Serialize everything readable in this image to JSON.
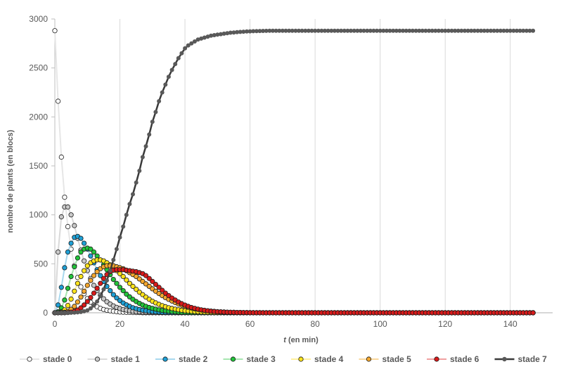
{
  "chart_data": {
    "type": "scatter",
    "title": "",
    "xlabel_italic": "t",
    "xlabel_rest": " (en min)",
    "ylabel": "nombre de plants (en blocs)",
    "xlim": [
      0,
      150
    ],
    "ylim": [
      0,
      3000
    ],
    "xticks": [
      0,
      20,
      40,
      60,
      80,
      100,
      120,
      140
    ],
    "yticks": [
      0,
      500,
      1000,
      1500,
      2000,
      2500,
      3000
    ],
    "grid": "vertical",
    "legend_position": "bottom",
    "x": "0..147 step 1",
    "series": [
      {
        "name": "stade 0",
        "fill": "#ffffff",
        "line": "#e6e6e6",
        "values": [
          2880,
          2160,
          1590,
          1180,
          880,
          650,
          480,
          360,
          265,
          195,
          145,
          108,
          80,
          60,
          45,
          34,
          26,
          20,
          15,
          11,
          8,
          6,
          5,
          4,
          3,
          2,
          2,
          1,
          1,
          1,
          0
        ]
      },
      {
        "name": "stade 1",
        "fill": "#c8c8c8",
        "line": "#d9d9d9",
        "values": [
          0,
          620,
          980,
          1080,
          1080,
          1000,
          890,
          760,
          640,
          530,
          430,
          350,
          280,
          225,
          180,
          143,
          113,
          89,
          70,
          55,
          43,
          34,
          27,
          21,
          16,
          13,
          10,
          8,
          6,
          5,
          4,
          3,
          2,
          2,
          1,
          1,
          0
        ]
      },
      {
        "name": "stade 2",
        "fill": "#1ea0d6",
        "line": "#a8d8ee",
        "values": [
          0,
          80,
          260,
          460,
          620,
          710,
          770,
          780,
          760,
          710,
          650,
          580,
          510,
          440,
          380,
          320,
          270,
          225,
          185,
          152,
          124,
          100,
          81,
          65,
          52,
          42,
          33,
          26,
          21,
          16,
          13,
          10,
          8,
          6,
          5,
          4,
          3,
          2,
          2,
          1,
          0
        ]
      },
      {
        "name": "stade 3",
        "fill": "#22c43a",
        "line": "#a6e6b0",
        "values": [
          0,
          10,
          50,
          130,
          250,
          370,
          470,
          560,
          620,
          650,
          660,
          650,
          620,
          580,
          540,
          490,
          440,
          390,
          340,
          300,
          260,
          225,
          190,
          162,
          137,
          115,
          96,
          80,
          66,
          54,
          45,
          37,
          30,
          24,
          20,
          16,
          13,
          10,
          8,
          6,
          5,
          4,
          3,
          2,
          2,
          1,
          0
        ]
      },
      {
        "name": "stade 4",
        "fill": "#ffe31a",
        "line": "#fff09e",
        "values": [
          0,
          1,
          8,
          30,
          75,
          140,
          220,
          300,
          370,
          430,
          480,
          510,
          530,
          540,
          540,
          530,
          510,
          490,
          460,
          430,
          400,
          370,
          335,
          300,
          270,
          240,
          210,
          185,
          160,
          138,
          118,
          101,
          86,
          73,
          62,
          52,
          44,
          37,
          31,
          26,
          21,
          18,
          15,
          12,
          10,
          8,
          7,
          5,
          4,
          3,
          3,
          2,
          2,
          1,
          1,
          0
        ]
      },
      {
        "name": "stade 5",
        "fill": "#f4a72e",
        "line": "#f9d79b",
        "values": [
          0,
          0,
          1,
          5,
          15,
          35,
          65,
          110,
          160,
          220,
          280,
          330,
          380,
          420,
          450,
          470,
          480,
          480,
          480,
          470,
          460,
          450,
          430,
          410,
          390,
          370,
          345,
          320,
          295,
          270,
          245,
          220,
          197,
          175,
          155,
          137,
          120,
          104,
          90,
          78,
          67,
          57,
          49,
          41,
          35,
          29,
          24,
          20,
          17,
          14,
          11,
          9,
          8,
          6,
          5,
          4,
          3,
          3,
          2,
          2,
          1,
          1,
          0
        ]
      },
      {
        "name": "stade 6",
        "fill": "#d91a1a",
        "line": "#f0a0a0",
        "values": [
          0,
          0,
          0,
          0,
          2,
          6,
          14,
          28,
          50,
          80,
          115,
          155,
          200,
          250,
          300,
          350,
          390,
          420,
          435,
          440,
          440,
          440,
          435,
          430,
          425,
          420,
          410,
          400,
          380,
          350,
          320,
          290,
          260,
          230,
          200,
          175,
          150,
          130,
          110,
          93,
          78,
          65,
          54,
          45,
          37,
          30,
          25,
          20,
          16,
          13,
          11,
          9,
          7,
          6,
          5,
          4,
          3,
          3,
          2,
          2,
          1,
          1,
          1,
          1,
          0
        ]
      },
      {
        "name": "stade 7",
        "fill": "#595959",
        "line": "#3a3a3a",
        "values": [
          0,
          0,
          0,
          0,
          0,
          1,
          2,
          4,
          8,
          15,
          25,
          45,
          75,
          115,
          170,
          240,
          330,
          430,
          540,
          650,
          770,
          880,
          1000,
          1110,
          1210,
          1330,
          1450,
          1590,
          1700,
          1820,
          1950,
          2050,
          2160,
          2250,
          2330,
          2410,
          2480,
          2540,
          2600,
          2650,
          2700,
          2730,
          2750,
          2770,
          2790,
          2800,
          2810,
          2820,
          2830,
          2835,
          2840,
          2845,
          2850,
          2855,
          2860,
          2862,
          2865,
          2868,
          2870,
          2872,
          2874,
          2875,
          2876,
          2877,
          2878,
          2879,
          2880
        ]
      }
    ]
  }
}
